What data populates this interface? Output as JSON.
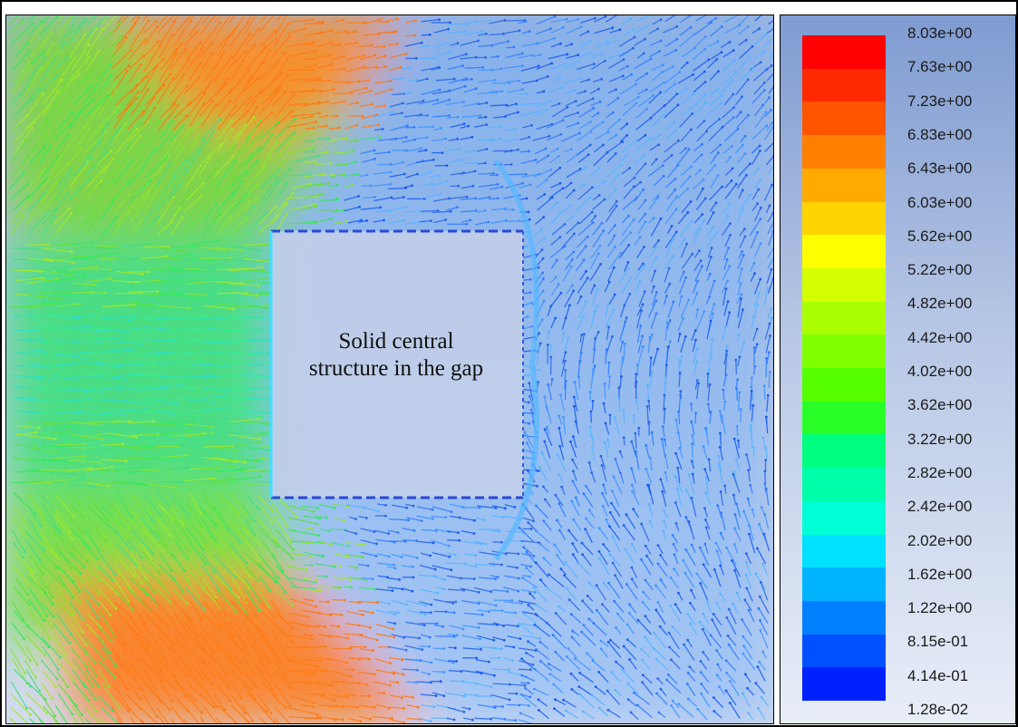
{
  "annotation": {
    "line1": "Solid central",
    "line2": "structure in the gap"
  },
  "legend": {
    "labels": [
      "8.03e+00",
      "7.63e+00",
      "7.23e+00",
      "6.83e+00",
      "6.43e+00",
      "6.03e+00",
      "5.62e+00",
      "5.22e+00",
      "4.82e+00",
      "4.42e+00",
      "4.02e+00",
      "3.62e+00",
      "3.22e+00",
      "2.82e+00",
      "2.42e+00",
      "2.02e+00",
      "1.62e+00",
      "1.22e+00",
      "8.15e-01",
      "4.14e-01",
      "1.28e-02"
    ],
    "colors": [
      "#ff0000",
      "#ff2a00",
      "#ff5500",
      "#ff7f00",
      "#ffaa00",
      "#ffd400",
      "#ffff00",
      "#d4ff00",
      "#aaff00",
      "#7fff00",
      "#55ff00",
      "#2aff2a",
      "#00ff7f",
      "#00ffaa",
      "#00ffd4",
      "#00e0ff",
      "#00b4ff",
      "#0080ff",
      "#0050ff",
      "#0020ff",
      "#0000ff"
    ]
  }
}
